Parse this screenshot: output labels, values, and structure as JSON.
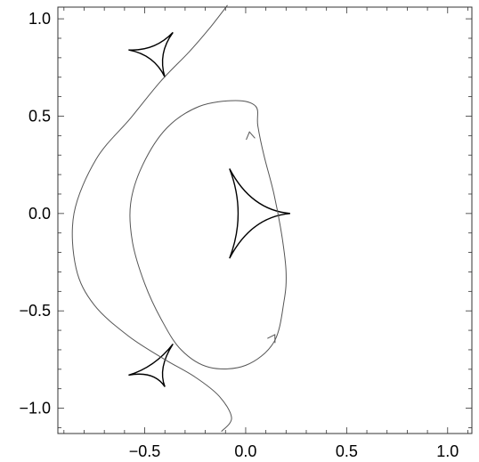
{
  "chart_data": {
    "type": "line",
    "title": "",
    "xlabel": "",
    "ylabel": "",
    "xlim": [
      -0.93,
      1.12
    ],
    "ylim": [
      -1.13,
      1.06
    ],
    "x_ticks": [
      -0.5,
      0.0,
      0.5,
      1.0
    ],
    "x_tick_labels": [
      "−0.5",
      "0.0",
      "0.5",
      "1.0"
    ],
    "y_ticks": [
      -1.0,
      -0.5,
      0.0,
      0.5,
      1.0
    ],
    "y_tick_labels": [
      "−1.0",
      "−0.5",
      "0.0",
      "0.5",
      "1.0"
    ],
    "grid": false,
    "colors": {
      "trajectory": "#555555",
      "caustic": "#000000"
    },
    "series": [
      {
        "kind": "trajectory",
        "points": [
          [
            -0.09,
            1.07
          ],
          [
            -0.18,
            0.95
          ],
          [
            -0.28,
            0.83
          ],
          [
            -0.42,
            0.68
          ],
          [
            -0.57,
            0.49
          ],
          [
            -0.74,
            0.28
          ],
          [
            -0.85,
            0.0
          ],
          [
            -0.84,
            -0.28
          ],
          [
            -0.75,
            -0.47
          ],
          [
            -0.58,
            -0.63
          ],
          [
            -0.4,
            -0.75
          ],
          [
            -0.25,
            -0.84
          ],
          [
            -0.13,
            -0.94
          ],
          [
            -0.07,
            -1.05
          ],
          [
            -0.12,
            -1.12
          ]
        ]
      },
      {
        "kind": "trajectory",
        "arrows": [
          [
            0.02,
            0.41
          ],
          [
            0.14,
            -0.63
          ]
        ],
        "points": [
          [
            0.05,
            0.55
          ],
          [
            -0.05,
            0.58
          ],
          [
            -0.23,
            0.55
          ],
          [
            -0.39,
            0.44
          ],
          [
            -0.51,
            0.25
          ],
          [
            -0.57,
            0.05
          ],
          [
            -0.56,
            -0.15
          ],
          [
            -0.5,
            -0.36
          ],
          [
            -0.42,
            -0.54
          ],
          [
            -0.32,
            -0.7
          ],
          [
            -0.18,
            -0.79
          ],
          [
            0.0,
            -0.78
          ],
          [
            0.14,
            -0.66
          ],
          [
            0.19,
            -0.45
          ],
          [
            0.2,
            -0.3
          ],
          [
            0.18,
            -0.12
          ],
          [
            0.14,
            0.1
          ],
          [
            0.09,
            0.3
          ],
          [
            0.06,
            0.45
          ]
        ]
      },
      {
        "kind": "caustic",
        "cusps": [
          [
            -0.08,
            0.23
          ],
          [
            0.22,
            0.0
          ],
          [
            -0.08,
            -0.23
          ]
        ],
        "inner": [
          -0.14,
          0.0
        ]
      },
      {
        "kind": "caustic",
        "cusps": [
          [
            -0.36,
            0.93
          ],
          [
            -0.4,
            0.7
          ],
          [
            -0.58,
            0.84
          ]
        ],
        "inner": [
          -0.43,
          0.83
        ]
      },
      {
        "kind": "caustic",
        "cusps": [
          [
            -0.36,
            -0.67
          ],
          [
            -0.4,
            -0.89
          ],
          [
            -0.58,
            -0.83
          ]
        ],
        "inner": [
          -0.43,
          -0.8
        ]
      }
    ]
  }
}
